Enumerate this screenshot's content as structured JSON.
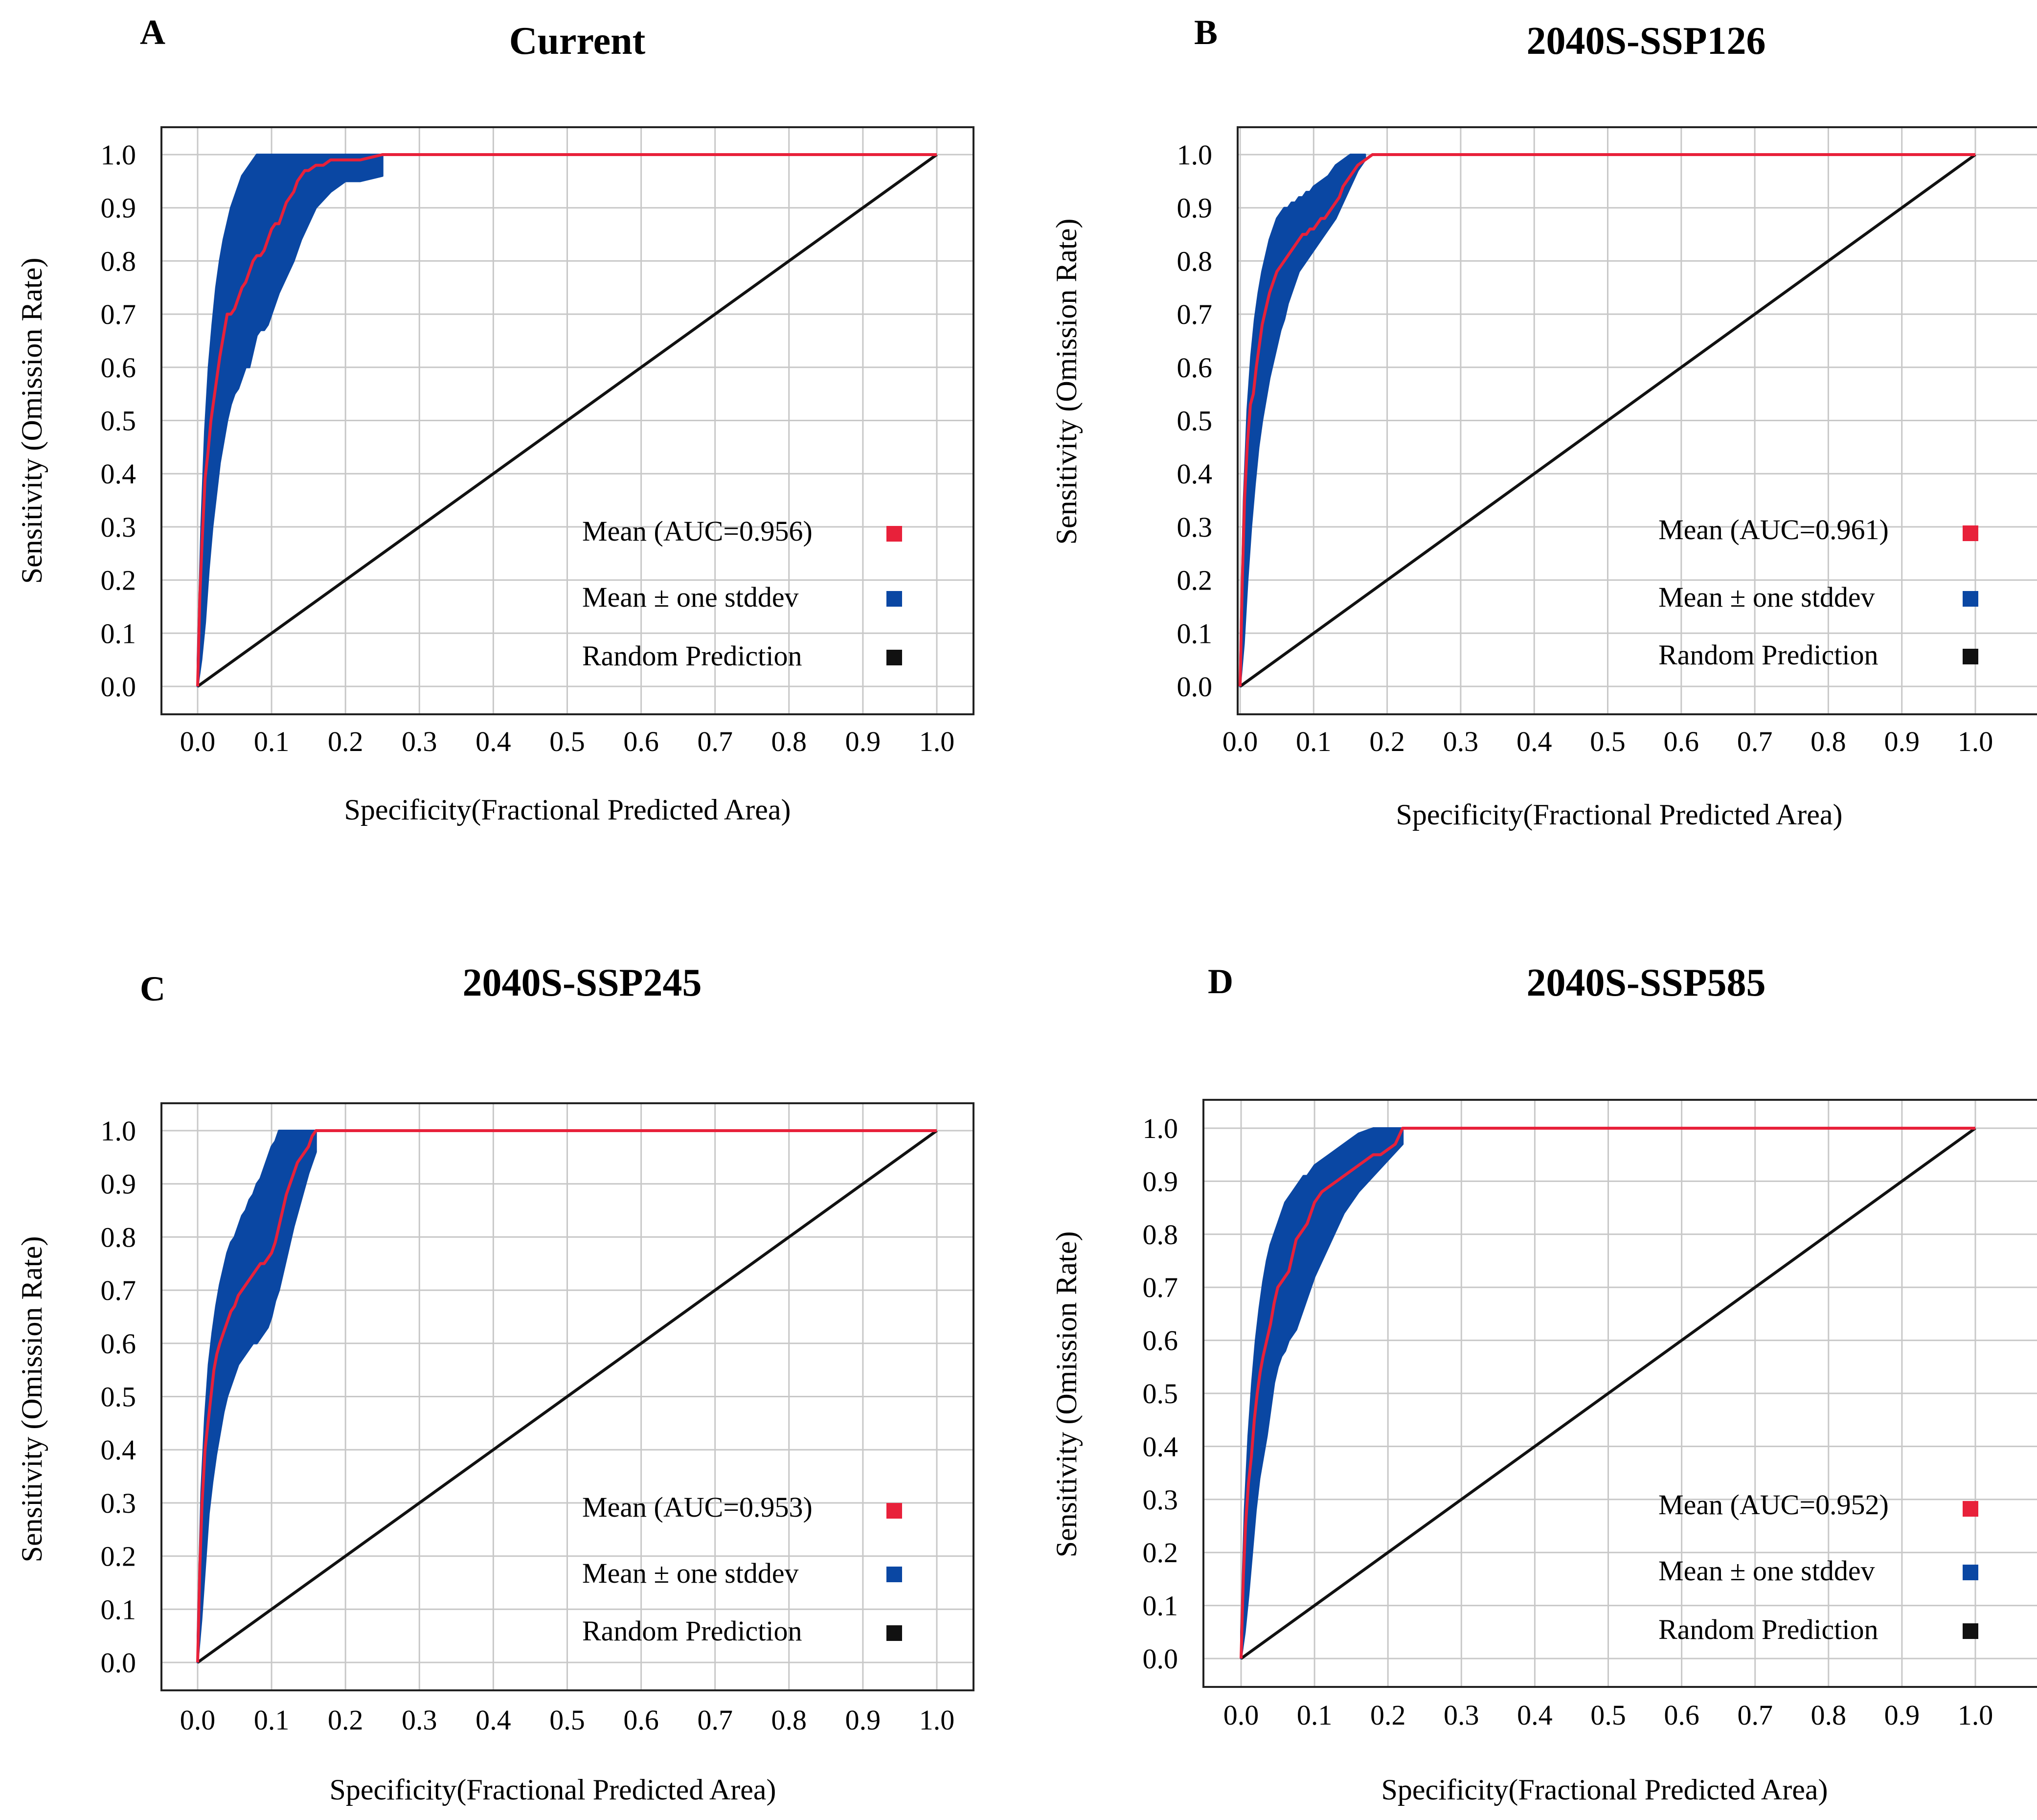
{
  "colors": {
    "mean": "#e8213a",
    "stddev": "#0a47a3",
    "random": "#111111",
    "grid": "#c8c8c8",
    "frame": "#222222"
  },
  "chart_data": [
    {
      "panel": "A",
      "title": "Current",
      "type": "line",
      "xlabel": "Specificity(Fractional Predicted Area)",
      "ylabel": "Sensitivity (Omission Rate)",
      "xlim": [
        -0.05,
        1.05
      ],
      "ylim": [
        -0.05,
        1.05
      ],
      "xticks": [
        "0.0",
        "0.1",
        "0.2",
        "0.3",
        "0.4",
        "0.5",
        "0.6",
        "0.7",
        "0.8",
        "0.9",
        "1.0"
      ],
      "yticks": [
        "0.0",
        "0.1",
        "0.2",
        "0.3",
        "0.4",
        "0.5",
        "0.6",
        "0.7",
        "0.8",
        "0.9",
        "1.0"
      ],
      "grid": true,
      "legend": [
        "Mean (AUC=0.956)",
        "Mean ± one stddev",
        "Random Prediction"
      ],
      "mean": {
        "x": [
          0,
          0.003,
          0.006,
          0.01,
          0.014,
          0.018,
          0.022,
          0.026,
          0.03,
          0.035,
          0.04,
          0.045,
          0.05,
          0.055,
          0.06,
          0.065,
          0.07,
          0.075,
          0.08,
          0.085,
          0.09,
          0.095,
          0.1,
          0.105,
          0.11,
          0.115,
          0.12,
          0.125,
          0.13,
          0.135,
          0.14,
          0.145,
          0.15,
          0.16,
          0.17,
          0.18,
          0.19,
          0.2,
          0.22,
          0.25,
          1.0
        ],
        "y": [
          0,
          0.17,
          0.27,
          0.39,
          0.44,
          0.5,
          0.54,
          0.58,
          0.62,
          0.66,
          0.7,
          0.7,
          0.71,
          0.73,
          0.75,
          0.76,
          0.78,
          0.8,
          0.81,
          0.81,
          0.82,
          0.84,
          0.86,
          0.87,
          0.87,
          0.89,
          0.91,
          0.92,
          0.93,
          0.95,
          0.96,
          0.97,
          0.97,
          0.98,
          0.98,
          0.99,
          0.99,
          0.99,
          0.99,
          1.0,
          1.0
        ]
      },
      "band": {
        "x": [
          0,
          0.005,
          0.01,
          0.015,
          0.02,
          0.025,
          0.03,
          0.035,
          0.04,
          0.045,
          0.05,
          0.055,
          0.06,
          0.065,
          0.07,
          0.075,
          0.08,
          0.085,
          0.09,
          0.095,
          0.1,
          0.105,
          0.11,
          0.12,
          0.13,
          0.14,
          0.15,
          0.16,
          0.18,
          0.2,
          0.22,
          0.25
        ],
        "upper": [
          0.05,
          0.3,
          0.48,
          0.6,
          0.68,
          0.75,
          0.8,
          0.84,
          0.87,
          0.9,
          0.92,
          0.94,
          0.96,
          0.97,
          0.98,
          0.99,
          1.0,
          1.0,
          1.0,
          1.0,
          1.0,
          1.0,
          1.0,
          1.0,
          1.0,
          1.0,
          1.0,
          1.0,
          1.0,
          1.0,
          1.0,
          1.0
        ],
        "lower": [
          0,
          0.05,
          0.12,
          0.22,
          0.3,
          0.36,
          0.42,
          0.46,
          0.5,
          0.53,
          0.55,
          0.56,
          0.58,
          0.6,
          0.6,
          0.63,
          0.66,
          0.67,
          0.67,
          0.68,
          0.7,
          0.72,
          0.74,
          0.77,
          0.8,
          0.84,
          0.87,
          0.9,
          0.93,
          0.95,
          0.95,
          0.96
        ]
      },
      "random": {
        "x": [
          0,
          1
        ],
        "y": [
          0,
          1
        ]
      }
    },
    {
      "panel": "B",
      "title": "2040S-SSP126",
      "type": "line",
      "xlabel": "Specificity(Fractional Predicted Area)",
      "ylabel": "Sensitivity (Omission Rate)",
      "xlim": [
        -0.05,
        1.05
      ],
      "ylim": [
        -0.05,
        1.05
      ],
      "xticks": [
        "0.0",
        "0.1",
        "0.2",
        "0.3",
        "0.4",
        "0.5",
        "0.6",
        "0.7",
        "0.8",
        "0.9",
        "1.0"
      ],
      "yticks": [
        "0.0",
        "0.1",
        "0.2",
        "0.3",
        "0.4",
        "0.5",
        "0.6",
        "0.7",
        "0.8",
        "0.9",
        "1.0"
      ],
      "grid": true,
      "legend": [
        "Mean (AUC=0.961)",
        "Mean ± one stddev",
        "Random Prediction"
      ],
      "mean": {
        "x": [
          0,
          0.003,
          0.006,
          0.01,
          0.014,
          0.018,
          0.022,
          0.026,
          0.03,
          0.035,
          0.04,
          0.045,
          0.05,
          0.055,
          0.06,
          0.065,
          0.07,
          0.075,
          0.08,
          0.085,
          0.09,
          0.095,
          0.1,
          0.105,
          0.11,
          0.115,
          0.12,
          0.125,
          0.13,
          0.135,
          0.14,
          0.15,
          0.16,
          0.17,
          0.18,
          1.0
        ],
        "y": [
          0,
          0.2,
          0.35,
          0.46,
          0.53,
          0.55,
          0.6,
          0.64,
          0.68,
          0.71,
          0.74,
          0.76,
          0.78,
          0.79,
          0.8,
          0.81,
          0.82,
          0.83,
          0.84,
          0.85,
          0.85,
          0.86,
          0.86,
          0.87,
          0.88,
          0.88,
          0.89,
          0.9,
          0.91,
          0.92,
          0.94,
          0.96,
          0.98,
          0.99,
          1.0,
          1.0
        ]
      },
      "band": {
        "x": [
          0,
          0.005,
          0.01,
          0.015,
          0.02,
          0.025,
          0.03,
          0.035,
          0.04,
          0.045,
          0.05,
          0.055,
          0.06,
          0.065,
          0.07,
          0.075,
          0.08,
          0.085,
          0.09,
          0.095,
          0.1,
          0.11,
          0.12,
          0.13,
          0.14,
          0.15,
          0.16,
          0.17
        ],
        "upper": [
          0.05,
          0.35,
          0.52,
          0.62,
          0.69,
          0.74,
          0.78,
          0.81,
          0.84,
          0.86,
          0.88,
          0.89,
          0.9,
          0.9,
          0.91,
          0.91,
          0.92,
          0.92,
          0.93,
          0.93,
          0.94,
          0.95,
          0.96,
          0.98,
          0.99,
          1.0,
          1.0,
          1.0
        ],
        "lower": [
          0,
          0.08,
          0.2,
          0.3,
          0.38,
          0.45,
          0.5,
          0.54,
          0.58,
          0.61,
          0.64,
          0.67,
          0.69,
          0.72,
          0.74,
          0.76,
          0.78,
          0.79,
          0.8,
          0.81,
          0.82,
          0.84,
          0.86,
          0.88,
          0.91,
          0.94,
          0.97,
          0.99
        ]
      },
      "random": {
        "x": [
          0,
          1
        ],
        "y": [
          0,
          1
        ]
      }
    },
    {
      "panel": "C",
      "title": "2040S-SSP245",
      "type": "line",
      "xlabel": "Specificity(Fractional Predicted Area)",
      "ylabel": "Sensitivity (Omission Rate)",
      "xlim": [
        -0.05,
        1.05
      ],
      "ylim": [
        -0.05,
        1.05
      ],
      "xticks": [
        "0.0",
        "0.1",
        "0.2",
        "0.3",
        "0.4",
        "0.5",
        "0.6",
        "0.7",
        "0.8",
        "0.9",
        "1.0"
      ],
      "yticks": [
        "0.0",
        "0.1",
        "0.2",
        "0.3",
        "0.4",
        "0.5",
        "0.6",
        "0.7",
        "0.8",
        "0.9",
        "1.0"
      ],
      "grid": true,
      "legend": [
        "Mean (AUC=0.953)",
        "Mean ± one stddev",
        "Random Prediction"
      ],
      "mean": {
        "x": [
          0,
          0.003,
          0.006,
          0.01,
          0.014,
          0.018,
          0.022,
          0.026,
          0.03,
          0.035,
          0.04,
          0.045,
          0.05,
          0.055,
          0.06,
          0.065,
          0.07,
          0.075,
          0.08,
          0.085,
          0.09,
          0.095,
          0.1,
          0.105,
          0.11,
          0.115,
          0.12,
          0.125,
          0.13,
          0.135,
          0.14,
          0.145,
          0.15,
          0.155,
          0.16,
          1.0
        ],
        "y": [
          0,
          0.18,
          0.3,
          0.4,
          0.45,
          0.5,
          0.55,
          0.58,
          0.6,
          0.62,
          0.64,
          0.66,
          0.67,
          0.69,
          0.7,
          0.71,
          0.72,
          0.73,
          0.74,
          0.75,
          0.75,
          0.76,
          0.77,
          0.79,
          0.82,
          0.85,
          0.88,
          0.9,
          0.92,
          0.94,
          0.95,
          0.96,
          0.97,
          0.99,
          1.0,
          1.0
        ]
      },
      "band": {
        "x": [
          0,
          0.005,
          0.01,
          0.015,
          0.02,
          0.025,
          0.03,
          0.035,
          0.04,
          0.045,
          0.05,
          0.055,
          0.06,
          0.065,
          0.07,
          0.075,
          0.08,
          0.085,
          0.09,
          0.095,
          0.1,
          0.105,
          0.11,
          0.12,
          0.13,
          0.14,
          0.15,
          0.16
        ],
        "upper": [
          0.05,
          0.32,
          0.46,
          0.56,
          0.62,
          0.67,
          0.71,
          0.74,
          0.77,
          0.79,
          0.8,
          0.82,
          0.84,
          0.85,
          0.87,
          0.88,
          0.9,
          0.91,
          0.93,
          0.95,
          0.97,
          0.98,
          1.0,
          1.0,
          1.0,
          1.0,
          1.0,
          1.0
        ],
        "lower": [
          0,
          0.08,
          0.18,
          0.28,
          0.34,
          0.39,
          0.43,
          0.47,
          0.5,
          0.52,
          0.54,
          0.56,
          0.57,
          0.58,
          0.59,
          0.6,
          0.6,
          0.61,
          0.62,
          0.63,
          0.65,
          0.68,
          0.7,
          0.76,
          0.82,
          0.87,
          0.92,
          0.96
        ]
      },
      "random": {
        "x": [
          0,
          1
        ],
        "y": [
          0,
          1
        ]
      }
    },
    {
      "panel": "D",
      "title": "2040S-SSP585",
      "type": "line",
      "xlabel": "Specificity(Fractional Predicted Area)",
      "ylabel": "Sensitivity (Omission Rate)",
      "xlim": [
        -0.05,
        1.05
      ],
      "ylim": [
        -0.05,
        1.05
      ],
      "xticks": [
        "0.0",
        "0.1",
        "0.2",
        "0.3",
        "0.4",
        "0.5",
        "0.6",
        "0.7",
        "0.8",
        "0.9",
        "1.0"
      ],
      "yticks": [
        "0.0",
        "0.1",
        "0.2",
        "0.3",
        "0.4",
        "0.5",
        "0.6",
        "0.7",
        "0.8",
        "0.9",
        "1.0"
      ],
      "grid": true,
      "legend": [
        "Mean (AUC=0.952)",
        "Mean ± one stddev",
        "Random Prediction"
      ],
      "mean": {
        "x": [
          0,
          0.003,
          0.006,
          0.01,
          0.014,
          0.018,
          0.022,
          0.026,
          0.03,
          0.035,
          0.04,
          0.045,
          0.05,
          0.055,
          0.06,
          0.065,
          0.07,
          0.075,
          0.08,
          0.085,
          0.09,
          0.095,
          0.1,
          0.105,
          0.11,
          0.12,
          0.13,
          0.14,
          0.15,
          0.16,
          0.17,
          0.18,
          0.19,
          0.2,
          0.21,
          0.22,
          1.0
        ],
        "y": [
          0,
          0.15,
          0.25,
          0.33,
          0.38,
          0.45,
          0.5,
          0.54,
          0.57,
          0.6,
          0.63,
          0.67,
          0.7,
          0.71,
          0.72,
          0.73,
          0.76,
          0.79,
          0.8,
          0.81,
          0.82,
          0.84,
          0.86,
          0.87,
          0.88,
          0.89,
          0.9,
          0.91,
          0.92,
          0.93,
          0.94,
          0.95,
          0.95,
          0.96,
          0.97,
          1.0,
          1.0
        ]
      },
      "band": {
        "x": [
          0,
          0.005,
          0.01,
          0.015,
          0.02,
          0.025,
          0.03,
          0.035,
          0.04,
          0.045,
          0.05,
          0.055,
          0.06,
          0.065,
          0.07,
          0.075,
          0.08,
          0.085,
          0.09,
          0.095,
          0.1,
          0.11,
          0.12,
          0.13,
          0.14,
          0.15,
          0.16,
          0.18,
          0.2,
          0.22
        ],
        "upper": [
          0.05,
          0.28,
          0.42,
          0.52,
          0.6,
          0.66,
          0.71,
          0.75,
          0.78,
          0.8,
          0.82,
          0.84,
          0.86,
          0.87,
          0.88,
          0.89,
          0.9,
          0.91,
          0.91,
          0.92,
          0.93,
          0.94,
          0.95,
          0.96,
          0.97,
          0.98,
          0.99,
          1.0,
          1.0,
          1.0
        ],
        "lower": [
          0,
          0.05,
          0.12,
          0.2,
          0.28,
          0.34,
          0.38,
          0.42,
          0.47,
          0.52,
          0.55,
          0.57,
          0.58,
          0.6,
          0.61,
          0.62,
          0.64,
          0.66,
          0.68,
          0.7,
          0.72,
          0.75,
          0.78,
          0.81,
          0.84,
          0.86,
          0.88,
          0.91,
          0.94,
          0.97
        ]
      },
      "random": {
        "x": [
          0,
          1
        ],
        "y": [
          0,
          1
        ]
      }
    }
  ]
}
